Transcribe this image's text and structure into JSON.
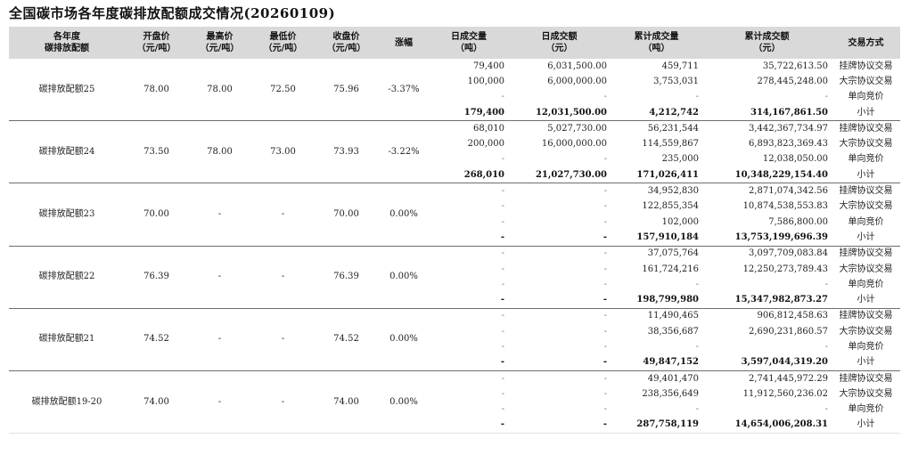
{
  "title": "全国碳市场各年度碳排放配额成交情况(20260109)",
  "header": {
    "product": [
      "各年度",
      "碳排放配额"
    ],
    "open": [
      "开盘价",
      "（元/吨）"
    ],
    "high": [
      "最高价",
      "（元/吨）"
    ],
    "low": [
      "最低价",
      "（元/吨）"
    ],
    "close": [
      "收盘价",
      "（元/吨）"
    ],
    "change": [
      "涨幅"
    ],
    "day_vol": [
      "日成交量",
      "（吨）"
    ],
    "day_amt": [
      "日成交额",
      "（元）"
    ],
    "cum_vol": [
      "累计成交量",
      "（吨）"
    ],
    "cum_amt": [
      "累计成交额",
      "（元）"
    ],
    "method": [
      "交易方式"
    ]
  },
  "groups": [
    {
      "name": "碳排放配额25",
      "open": "78.00",
      "high": "78.00",
      "low": "72.50",
      "close": "75.96",
      "change": "-3.37%",
      "rows": [
        {
          "day_vol": "79,400",
          "day_amt": "6,031,500.00",
          "cum_vol": "459,711",
          "cum_amt": "35,722,613.50",
          "method": "挂牌协议交易"
        },
        {
          "day_vol": "100,000",
          "day_amt": "6,000,000.00",
          "cum_vol": "3,753,031",
          "cum_amt": "278,445,248.00",
          "method": "大宗协议交易"
        },
        {
          "day_vol": "-",
          "day_amt": "-",
          "cum_vol": "-",
          "cum_amt": "-",
          "method": "单向竞价"
        },
        {
          "day_vol": "179,400",
          "day_amt": "12,031,500.00",
          "cum_vol": "4,212,742",
          "cum_amt": "314,167,861.50",
          "method": "小计",
          "subtotal": true
        }
      ]
    },
    {
      "name": "碳排放配额24",
      "open": "73.50",
      "high": "78.00",
      "low": "73.00",
      "close": "73.93",
      "change": "-3.22%",
      "rows": [
        {
          "day_vol": "68,010",
          "day_amt": "5,027,730.00",
          "cum_vol": "56,231,544",
          "cum_amt": "3,442,367,734.97",
          "method": "挂牌协议交易"
        },
        {
          "day_vol": "200,000",
          "day_amt": "16,000,000.00",
          "cum_vol": "114,559,867",
          "cum_amt": "6,893,823,369.43",
          "method": "大宗协议交易"
        },
        {
          "day_vol": "-",
          "day_amt": "-",
          "cum_vol": "235,000",
          "cum_amt": "12,038,050.00",
          "method": "单向竞价"
        },
        {
          "day_vol": "268,010",
          "day_amt": "21,027,730.00",
          "cum_vol": "171,026,411",
          "cum_amt": "10,348,229,154.40",
          "method": "小计",
          "subtotal": true
        }
      ]
    },
    {
      "name": "碳排放配额23",
      "open": "70.00",
      "high": "-",
      "low": "-",
      "close": "70.00",
      "change": "0.00%",
      "rows": [
        {
          "day_vol": "-",
          "day_amt": "-",
          "cum_vol": "34,952,830",
          "cum_amt": "2,871,074,342.56",
          "method": "挂牌协议交易"
        },
        {
          "day_vol": "-",
          "day_amt": "-",
          "cum_vol": "122,855,354",
          "cum_amt": "10,874,538,553.83",
          "method": "大宗协议交易"
        },
        {
          "day_vol": "-",
          "day_amt": "-",
          "cum_vol": "102,000",
          "cum_amt": "7,586,800.00",
          "method": "单向竞价"
        },
        {
          "day_vol": "-",
          "day_amt": "-",
          "cum_vol": "157,910,184",
          "cum_amt": "13,753,199,696.39",
          "method": "小计",
          "subtotal": true
        }
      ]
    },
    {
      "name": "碳排放配额22",
      "open": "76.39",
      "high": "-",
      "low": "-",
      "close": "76.39",
      "change": "0.00%",
      "rows": [
        {
          "day_vol": "-",
          "day_amt": "-",
          "cum_vol": "37,075,764",
          "cum_amt": "3,097,709,083.84",
          "method": "挂牌协议交易"
        },
        {
          "day_vol": "-",
          "day_amt": "-",
          "cum_vol": "161,724,216",
          "cum_amt": "12,250,273,789.43",
          "method": "大宗协议交易"
        },
        {
          "day_vol": "-",
          "day_amt": "-",
          "cum_vol": "-",
          "cum_amt": "-",
          "method": "单向竞价"
        },
        {
          "day_vol": "-",
          "day_amt": "-",
          "cum_vol": "198,799,980",
          "cum_amt": "15,347,982,873.27",
          "method": "小计",
          "subtotal": true
        }
      ]
    },
    {
      "name": "碳排放配额21",
      "open": "74.52",
      "high": "-",
      "low": "-",
      "close": "74.52",
      "change": "0.00%",
      "rows": [
        {
          "day_vol": "-",
          "day_amt": "-",
          "cum_vol": "11,490,465",
          "cum_amt": "906,812,458.63",
          "method": "挂牌协议交易"
        },
        {
          "day_vol": "-",
          "day_amt": "-",
          "cum_vol": "38,356,687",
          "cum_amt": "2,690,231,860.57",
          "method": "大宗协议交易"
        },
        {
          "day_vol": "-",
          "day_amt": "-",
          "cum_vol": "-",
          "cum_amt": "-",
          "method": "单向竞价"
        },
        {
          "day_vol": "-",
          "day_amt": "-",
          "cum_vol": "49,847,152",
          "cum_amt": "3,597,044,319.20",
          "method": "小计",
          "subtotal": true
        }
      ]
    },
    {
      "name": "碳排放配额19-20",
      "open": "74.00",
      "high": "-",
      "low": "-",
      "close": "74.00",
      "change": "0.00%",
      "rows": [
        {
          "day_vol": "-",
          "day_amt": "-",
          "cum_vol": "49,401,470",
          "cum_amt": "2,741,445,972.29",
          "method": "挂牌协议交易"
        },
        {
          "day_vol": "-",
          "day_amt": "-",
          "cum_vol": "238,356,649",
          "cum_amt": "11,912,560,236.02",
          "method": "大宗协议交易"
        },
        {
          "day_vol": "-",
          "day_amt": "-",
          "cum_vol": "-",
          "cum_amt": "-",
          "method": "单向竞价"
        },
        {
          "day_vol": "-",
          "day_amt": "-",
          "cum_vol": "287,758,119",
          "cum_amt": "14,654,006,208.31",
          "method": "小计",
          "subtotal": true
        }
      ]
    }
  ]
}
